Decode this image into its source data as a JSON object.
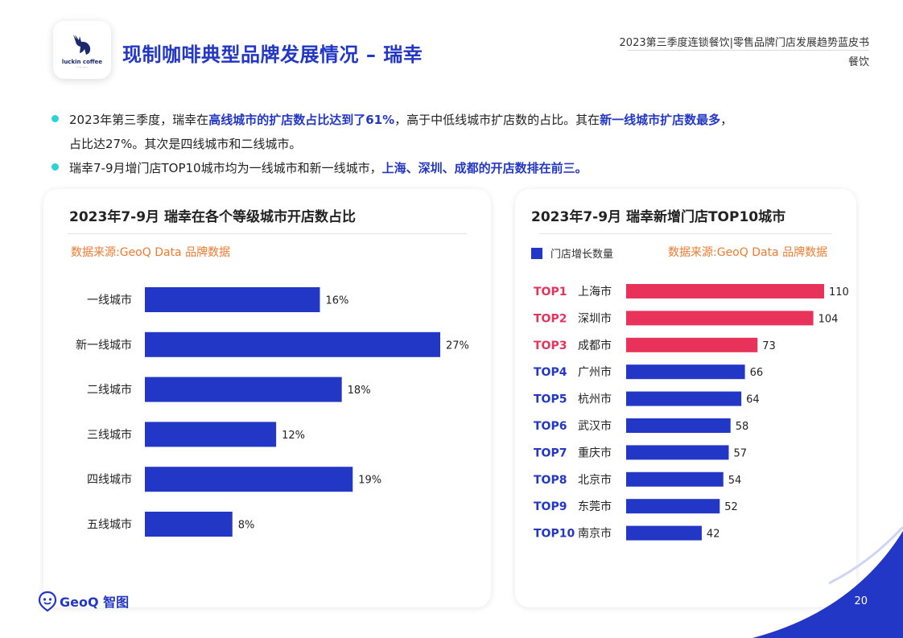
{
  "header": {
    "page_title": "现制咖啡典型品牌发展情况 – 瑞幸",
    "report_title": "2023第三季度连锁餐饮|零售品牌门店发展趋势蓝皮书",
    "report_sub": "餐饮",
    "logo_brand": "luckin coffee"
  },
  "bullets": {
    "b1_p1": "2023年第三季度，瑞幸在",
    "b1_h1": "高线城市的扩店数占比达到了61%",
    "b1_p2": "，高于中低线城市扩店数的占比。其在",
    "b1_h2": "新一线城市扩店数最多",
    "b1_p3": "，",
    "b1_line2": "占比达27%。其次是四线城市和二线城市。",
    "b2_p1": "瑞幸7-9月增门店TOP10城市均为一线城市和新一线城市，",
    "b2_h1": "上海、深圳、成都的开店数排在前三。"
  },
  "left_card": {
    "title": "2023年7-9月 瑞幸在各个等级城市开店数占比",
    "source": "数据来源:GeoQ Data 品牌数据"
  },
  "right_card": {
    "title": "2023年7-9月 瑞幸新增门店TOP10城市",
    "source": "数据来源:GeoQ Data 品牌数据",
    "legend": "门店增长数量"
  },
  "footer": {
    "logo": "GeoQ 智图",
    "page": "20"
  },
  "colors": {
    "blue": "#2337c6",
    "red": "#e8325a",
    "orange": "#f07a30",
    "teal": "#2bd4d4"
  },
  "chart_data": [
    {
      "type": "bar",
      "orientation": "horizontal",
      "title": "2023年7-9月 瑞幸在各个等级城市开店数占比",
      "categories": [
        "一线城市",
        "新一线城市",
        "二线城市",
        "三线城市",
        "四线城市",
        "五线城市"
      ],
      "values": [
        16,
        27,
        18,
        12,
        19,
        8
      ],
      "value_labels": [
        "16%",
        "27%",
        "18%",
        "12%",
        "19%",
        "8%"
      ],
      "unit": "%",
      "color": "#2337c6"
    },
    {
      "type": "bar",
      "orientation": "horizontal",
      "title": "2023年7-9月 瑞幸新增门店TOP10城市",
      "ranks": [
        "TOP1",
        "TOP2",
        "TOP3",
        "TOP4",
        "TOP5",
        "TOP6",
        "TOP7",
        "TOP8",
        "TOP9",
        "TOP10"
      ],
      "categories": [
        "上海市",
        "深圳市",
        "成都市",
        "广州市",
        "杭州市",
        "武汉市",
        "重庆市",
        "北京市",
        "东莞市",
        "南京市"
      ],
      "series": [
        {
          "name": "门店增长数量",
          "values": [
            110,
            104,
            73,
            66,
            64,
            58,
            57,
            54,
            52,
            42
          ]
        }
      ],
      "highlight_top": 3,
      "highlight_color": "#e8325a",
      "color": "#2337c6"
    }
  ]
}
